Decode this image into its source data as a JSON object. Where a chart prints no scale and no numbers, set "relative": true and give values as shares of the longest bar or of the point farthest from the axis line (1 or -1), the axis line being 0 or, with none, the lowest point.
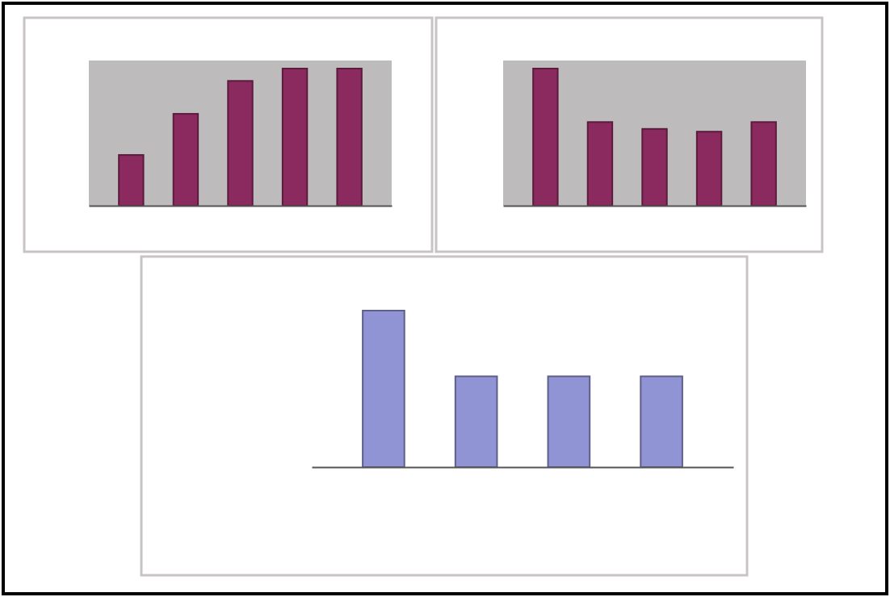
{
  "chart_data": [
    {
      "type": "bar",
      "relative": true,
      "categories": [
        null,
        null,
        null,
        null,
        null
      ],
      "values": [
        0.37,
        0.67,
        0.91,
        1,
        1
      ],
      "color": "#8b2a5e"
    },
    {
      "type": "bar",
      "relative": true,
      "categories": [
        null,
        null,
        null,
        null,
        null
      ],
      "values": [
        1,
        0.61,
        0.56,
        0.54,
        0.61
      ],
      "color": "#8b2a5e"
    },
    {
      "type": "bar",
      "relative": true,
      "categories": [
        null,
        null,
        null,
        null
      ],
      "values": [
        1,
        0.58,
        0.58,
        0.58
      ],
      "color": "#9094d4"
    }
  ]
}
